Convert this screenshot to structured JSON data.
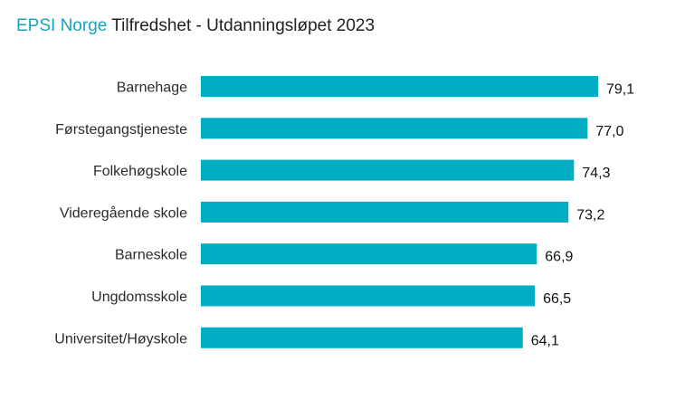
{
  "header": {
    "brand": "EPSI Norge",
    "title": "Tilfredshet - Utdanningsløpet 2023"
  },
  "colors": {
    "bar": "#00adc3",
    "brand": "#16a6b9"
  },
  "chart_data": {
    "type": "bar",
    "orientation": "horizontal",
    "title": "EPSI Norge Tilfredshet - Utdanningsløpet 2023",
    "categories": [
      "Barnehage",
      "Førstegangstjeneste",
      "Folkehøgskole",
      "Videregående skole",
      "Barneskole",
      "Ungdomsskole",
      "Universitet/Høyskole"
    ],
    "values": [
      79.1,
      77.0,
      74.3,
      73.2,
      66.9,
      66.5,
      64.1
    ],
    "value_labels": [
      "79,1",
      "77,0",
      "74,3",
      "73,2",
      "66,9",
      "66,5",
      "64,1"
    ],
    "xlabel": "",
    "ylabel": "",
    "grid": false,
    "legend": "none"
  }
}
